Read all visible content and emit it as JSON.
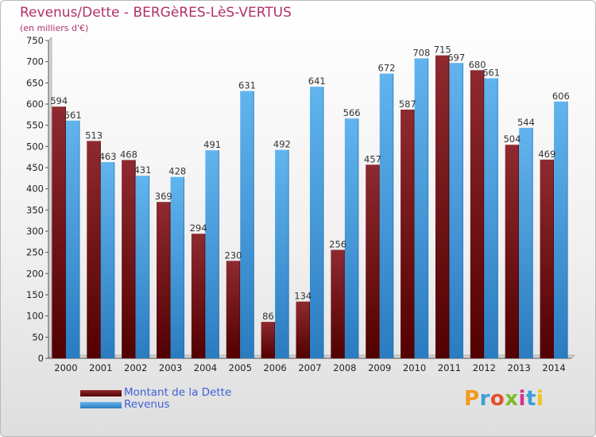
{
  "header": {
    "title": "Revenus/Dette - BERGèRES-LèS-VERTUS",
    "subtitle": "(en milliers d'€)"
  },
  "brand": {
    "name": "Proxiti"
  },
  "colors": {
    "debt_top": "#8e2a30",
    "debt_bottom": "#520000",
    "revenue_top": "#62b4ee",
    "revenue_bottom": "#2a7cc0",
    "title": "#b0306a",
    "legend_text": "#4060d8"
  },
  "chart_data": {
    "type": "bar",
    "title": "Revenus/Dette - BERGèRES-LèS-VERTUS",
    "ylabel": "(en milliers d'€)",
    "xlabel": "",
    "ylim": [
      0,
      750
    ],
    "y_ticks": [
      0,
      50,
      100,
      150,
      200,
      250,
      300,
      350,
      400,
      450,
      500,
      550,
      600,
      650,
      700,
      750
    ],
    "grid": false,
    "legend_position": "bottom-left",
    "categories": [
      "2000",
      "2001",
      "2002",
      "2003",
      "2004",
      "2005",
      "2006",
      "2007",
      "2008",
      "2009",
      "2010",
      "2011",
      "2012",
      "2013",
      "2014"
    ],
    "series": [
      {
        "name": "Montant de la Dette",
        "values": [
          594,
          513,
          468,
          369,
          294,
          230,
          86,
          134,
          256,
          457,
          587,
          715,
          680,
          504,
          469
        ]
      },
      {
        "name": "Revenus",
        "values": [
          561,
          463,
          431,
          428,
          491,
          631,
          492,
          641,
          566,
          672,
          708,
          697,
          661,
          544,
          606
        ]
      }
    ]
  }
}
